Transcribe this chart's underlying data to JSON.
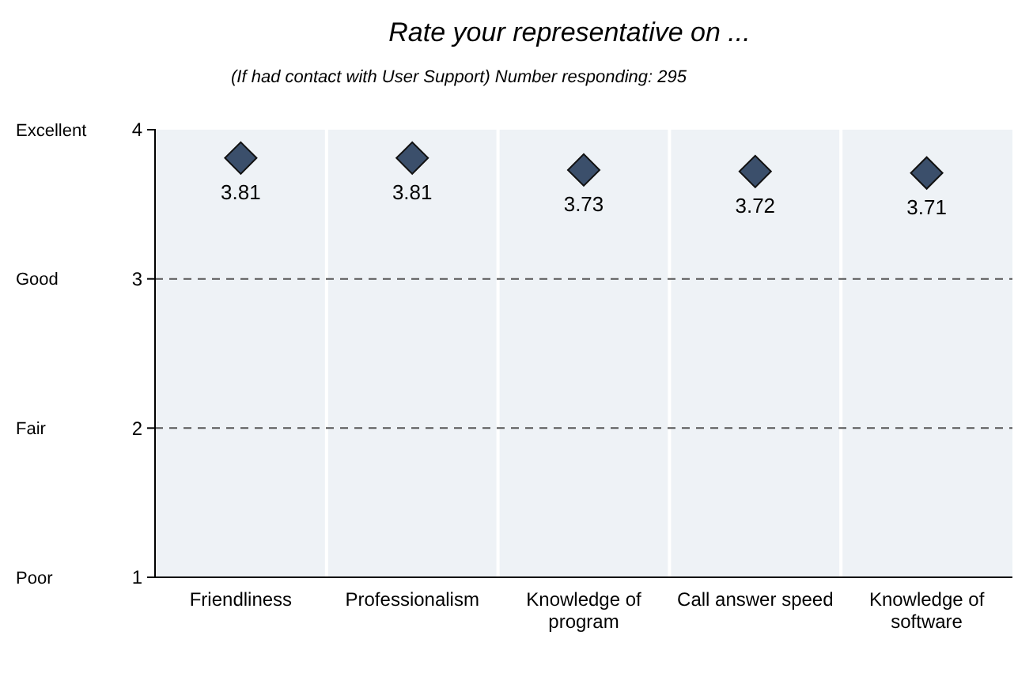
{
  "chart_data": {
    "type": "scatter",
    "title": "Rate your representative on ...",
    "subtitle": "(If had contact with User Support) Number responding: 295",
    "categories": [
      "Friendliness",
      "Professionalism",
      "Knowledge of program",
      "Call answer speed",
      "Knowledge of software"
    ],
    "series": [
      {
        "color": "#3b4f6b",
        "values": [
          3.81,
          3.81,
          3.73,
          3.72,
          3.71
        ]
      }
    ],
    "ylim": [
      1,
      4
    ],
    "yticks": [
      1,
      2,
      3,
      4
    ],
    "annotations": [
      "Poor",
      "Fair",
      "Good",
      "Excellent"
    ],
    "grid": "y",
    "line_style": "dashed",
    "marker": "diamond",
    "data_labels": true
  }
}
